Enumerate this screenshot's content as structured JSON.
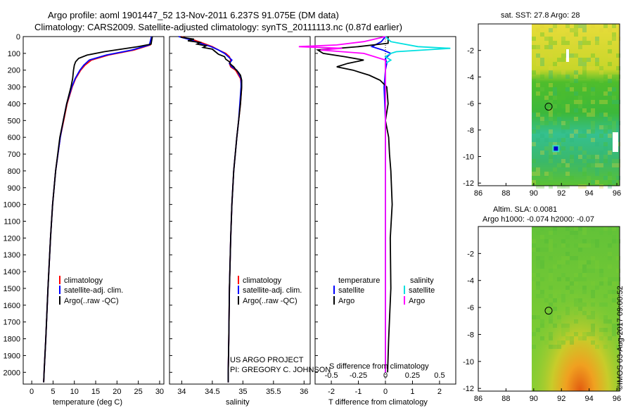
{
  "header": {
    "title_line1": "Argo profile: aoml 1901447_52 13-Nov-2011 6.237S 91.075E (DM data)",
    "title_line2": "Climatology: CARS2009. Satellite-adjusted climatology: synTS_20111113.nc (0.87d earlier)"
  },
  "footer_stamp": "©IMOS 03-Aug-2017 09:00:52",
  "credits": {
    "line1": "US ARGO PROJECT",
    "line2": "PI: GREGORY C. JOHNSON"
  },
  "colors": {
    "climatology": "#ff0000",
    "satellite": "#0000ff",
    "argo": "#000000",
    "satellite_salinity": "#00e0e0",
    "argo_salinity": "#ff00ff"
  },
  "chart_data": [
    {
      "type": "line",
      "name": "temperature-profile",
      "xlabel": "temperature (deg C)",
      "ylabel": "",
      "xlim": [
        -2,
        31
      ],
      "ylim": [
        2070,
        0
      ],
      "xticks": [
        0,
        5,
        10,
        15,
        20,
        25,
        30
      ],
      "yticks": [
        0,
        100,
        200,
        300,
        400,
        500,
        600,
        700,
        800,
        900,
        1000,
        1100,
        1200,
        1300,
        1400,
        1500,
        1600,
        1700,
        1800,
        1900,
        2000
      ],
      "legend": [
        "climatology",
        "satellite-adj. clim.",
        "Argo(..raw -QC)"
      ],
      "legend_position": "lower-left",
      "series": [
        {
          "name": "climatology",
          "depth": [
            0,
            50,
            80,
            110,
            140,
            170,
            200,
            250,
            300,
            400,
            500,
            600,
            800,
            1000,
            1200,
            1500,
            1800,
            2000,
            2060
          ],
          "values": [
            28.2,
            27.8,
            24,
            18,
            14,
            12.5,
            11.5,
            10.3,
            9.5,
            8.3,
            7.5,
            6.7,
            5.6,
            4.9,
            4.4,
            3.8,
            3.3,
            2.9,
            2.8
          ]
        },
        {
          "name": "satellite-adj. clim.",
          "depth": [
            0,
            50,
            80,
            110,
            140,
            170,
            200,
            250,
            300,
            400,
            500,
            600,
            800,
            1000,
            1200,
            1500,
            1800,
            2000,
            2060
          ],
          "values": [
            28.1,
            27.6,
            23.5,
            17.5,
            13.5,
            12.2,
            11.3,
            10.2,
            9.4,
            8.2,
            7.4,
            6.7,
            5.6,
            4.9,
            4.4,
            3.8,
            3.3,
            2.9,
            2.8
          ]
        },
        {
          "name": "Argo(..raw -QC)",
          "depth": [
            0,
            45,
            60,
            75,
            90,
            110,
            130,
            150,
            170,
            200,
            250,
            300,
            400,
            500,
            600,
            800,
            1000,
            1200,
            1500,
            1800,
            2000,
            2060
          ],
          "values": [
            28.3,
            28,
            25,
            21,
            17,
            13,
            11,
            10.3,
            10,
            9.8,
            9.6,
            9.2,
            8.2,
            7.4,
            6.6,
            5.6,
            4.9,
            4.4,
            3.8,
            3.3,
            2.9,
            2.8
          ]
        }
      ]
    },
    {
      "type": "line",
      "name": "salinity-profile",
      "xlabel": "salinity",
      "xlim": [
        33.8,
        36.1
      ],
      "ylim": [
        2070,
        0
      ],
      "xticks": [
        34,
        34.5,
        35,
        35.5,
        36
      ],
      "legend": [
        "climatology",
        "satellite-adj. clim.",
        "Argo(..raw -QC)"
      ],
      "legend_position": "lower-left",
      "series": [
        {
          "name": "climatology",
          "depth": [
            0,
            20,
            40,
            60,
            80,
            100,
            120,
            140,
            160,
            180,
            200,
            250,
            300,
            400,
            500,
            600,
            800,
            1000,
            1200,
            1500,
            1800,
            2000,
            2060
          ],
          "values": [
            33.98,
            34.2,
            34.35,
            34.5,
            34.6,
            34.72,
            34.78,
            34.8,
            34.78,
            34.8,
            34.88,
            34.96,
            34.98,
            34.96,
            34.93,
            34.9,
            34.85,
            34.82,
            34.8,
            34.78,
            34.77,
            34.76,
            34.76
          ]
        },
        {
          "name": "satellite-adj. clim.",
          "depth": [
            0,
            20,
            40,
            60,
            80,
            100,
            120,
            140,
            160,
            180,
            200,
            250,
            300,
            400,
            500,
            600,
            800,
            1000,
            1200,
            1500,
            1800,
            2000,
            2060
          ],
          "values": [
            33.95,
            34.15,
            34.3,
            34.48,
            34.6,
            34.7,
            34.76,
            34.82,
            34.78,
            34.82,
            34.9,
            34.97,
            34.97,
            34.95,
            34.93,
            34.9,
            34.85,
            34.82,
            34.8,
            34.78,
            34.77,
            34.76,
            34.76
          ]
        },
        {
          "name": "Argo(..raw -QC)",
          "depth": [
            0,
            5,
            15,
            25,
            35,
            45,
            55,
            65,
            75,
            90,
            105,
            120,
            135,
            150,
            165,
            180,
            195,
            210,
            230,
            260,
            300,
            400,
            500,
            600,
            800,
            1000,
            1200,
            1500,
            1800,
            2000,
            2060
          ],
          "values": [
            33.98,
            34.0,
            34.2,
            34.1,
            34.3,
            34.25,
            34.4,
            34.35,
            34.5,
            34.55,
            34.6,
            34.7,
            34.72,
            34.78,
            34.8,
            34.85,
            34.88,
            34.92,
            34.96,
            34.98,
            34.98,
            34.96,
            34.93,
            34.9,
            34.85,
            34.82,
            34.8,
            34.78,
            34.77,
            34.76,
            34.76
          ]
        }
      ]
    },
    {
      "type": "line",
      "name": "difference-profile",
      "xlabel": "T difference from climatology",
      "x2label": "S difference from climatology",
      "xlim": [
        -2.6,
        2.6
      ],
      "ylim": [
        2070,
        0
      ],
      "xticks": [
        -2,
        -1,
        0,
        1,
        2
      ],
      "x2ticks": [
        "-0.5",
        "-0.25",
        "0",
        "0.25",
        "0.5"
      ],
      "legend_headers": [
        "temperature",
        "salinity"
      ],
      "legend": [
        "satellite",
        "Argo",
        "satellite",
        "Argo"
      ],
      "legend_position": "lower-left",
      "series": [
        {
          "name": "temperature satellite",
          "depth": [
            0,
            30,
            60,
            80,
            100,
            130,
            160,
            200,
            300,
            500,
            800,
            1000,
            1500,
            2000
          ],
          "values": [
            0,
            -0.15,
            -0.5,
            -0.1,
            0.2,
            0,
            0.05,
            0,
            -0.05,
            0,
            0,
            0,
            0,
            0
          ]
        },
        {
          "name": "temperature Argo",
          "depth": [
            0,
            40,
            60,
            80,
            100,
            120,
            140,
            160,
            180,
            200,
            230,
            260,
            300,
            400,
            500,
            600,
            700,
            800,
            1000,
            1200,
            1500,
            1800,
            2000
          ],
          "values": [
            0.1,
            0.1,
            -1,
            -2.5,
            -2.3,
            -1.5,
            -0.8,
            -1.4,
            -1.8,
            -1.2,
            -0.6,
            -0.2,
            0.05,
            0.1,
            0,
            0.12,
            0.15,
            0.2,
            0.25,
            0.18,
            0.2,
            0.12,
            0.08
          ]
        },
        {
          "name": "salinity satellite",
          "depth": [
            0,
            30,
            60,
            70,
            80,
            90,
            100,
            120,
            140,
            160,
            200,
            300,
            500,
            1000,
            1500,
            2000
          ],
          "values": [
            0,
            0.05,
            0.3,
            0.6,
            0.35,
            0.1,
            0.05,
            0,
            0.05,
            0,
            0,
            0,
            0,
            0,
            0,
            0
          ]
        },
        {
          "name": "salinity Argo",
          "depth": [
            0,
            30,
            50,
            60,
            70,
            80,
            100,
            120,
            140,
            160,
            200,
            300,
            500,
            1000,
            1500,
            2000
          ],
          "values": [
            0,
            -0.2,
            -0.45,
            -0.8,
            -0.4,
            -0.6,
            -0.2,
            -0.1,
            0,
            0,
            0,
            0,
            0,
            0,
            0,
            0
          ]
        }
      ]
    },
    {
      "type": "heatmap",
      "name": "sst-map",
      "title": "sat. SST: 27.8 Argo: 28",
      "xlim": [
        86,
        96.2
      ],
      "ylim": [
        -12.2,
        0
      ],
      "xticks": [
        86,
        88,
        90,
        92,
        94,
        96
      ],
      "yticks": [
        -2,
        -4,
        -6,
        -8,
        -10,
        -12
      ],
      "argo_position": [
        91.075,
        -6.237
      ],
      "marker_position": [
        91.6,
        -9.4
      ]
    },
    {
      "type": "heatmap",
      "name": "sla-map",
      "title_line1": "Altim. SLA: 0.0081",
      "title_line2": "Argo h1000: -0.074 h2000: -0.07",
      "xlim": [
        86,
        96.2
      ],
      "ylim": [
        -12.2,
        0
      ],
      "xticks": [
        86,
        88,
        90,
        92,
        94,
        96
      ],
      "yticks": [
        -2,
        -4,
        -6,
        -8,
        -10,
        -12
      ],
      "argo_position": [
        91.075,
        -6.237
      ]
    }
  ]
}
